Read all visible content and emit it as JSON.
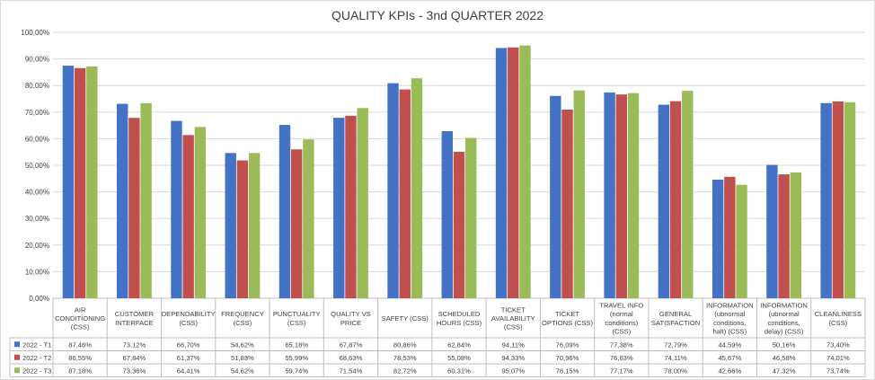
{
  "chart_data": {
    "type": "bar",
    "title": "QUALITY KPIs - 3nd QUARTER 2022",
    "ylim": [
      0,
      100
    ],
    "y_ticks": [
      "0,00%",
      "10,00%",
      "20,00%",
      "30,00%",
      "40,00%",
      "50,00%",
      "60,00%",
      "70,00%",
      "80,00%",
      "90,00%",
      "100,00%"
    ],
    "grid": true,
    "legend_placement": "data-table-left",
    "categories": [
      [
        "AIR",
        "CONDITIONING",
        "(CSS)"
      ],
      [
        "CUSTOMER",
        "INTERFACE"
      ],
      [
        "DEPENDABILITY",
        "(CSS)"
      ],
      [
        "FREQUENCY",
        "(CSS)"
      ],
      [
        "PUNCTUALITY",
        "(CSS)"
      ],
      [
        "QUALITY VS",
        "PRICE"
      ],
      [
        "SAFETY (CSS)"
      ],
      [
        "SCHEDULED",
        "HOURS (CSS)"
      ],
      [
        "TICKET",
        "AVAILABILITY",
        "(CSS)"
      ],
      [
        "TICKET",
        "OPTIONS (CSS)"
      ],
      [
        "TRAVEL INFO",
        "(normal",
        "conditions)",
        "(CSS)"
      ],
      [
        "GENERAL",
        "SATISFACTION"
      ],
      [
        "INFORMATION",
        "(ubnormal",
        "conditions,",
        "halt) (CSS)"
      ],
      [
        "INFORMATION",
        "(ubnormal",
        "conditions,",
        "delay) (CSS)"
      ],
      [
        "CLEANLINESS",
        "(CSS)"
      ]
    ],
    "series": [
      {
        "name": "2022 - T1",
        "color": "#4472c4",
        "values": [
          87.46,
          73.12,
          66.7,
          54.62,
          65.18,
          67.87,
          80.86,
          62.84,
          94.11,
          76.09,
          77.38,
          72.79,
          44.59,
          50.16,
          73.4
        ],
        "labels": [
          "87,46%",
          "73,12%",
          "66,70%",
          "54,62%",
          "65,18%",
          "67,87%",
          "80,86%",
          "62,84%",
          "94,11%",
          "76,09%",
          "77,38%",
          "72,79%",
          "44,59%",
          "50,16%",
          "73,40%"
        ]
      },
      {
        "name": "2022 - T2",
        "color": "#c0504d",
        "values": [
          86.55,
          67.84,
          61.37,
          51.83,
          55.99,
          68.63,
          78.53,
          55.08,
          94.33,
          70.96,
          76.63,
          74.11,
          45.67,
          46.58,
          74.01
        ],
        "labels": [
          "86,55%",
          "67,84%",
          "61,37%",
          "51,83%",
          "55,99%",
          "68,63%",
          "78,53%",
          "55,08%",
          "94,33%",
          "70,96%",
          "76,63%",
          "74,11%",
          "45,67%",
          "46,58%",
          "74,01%"
        ]
      },
      {
        "name": "2022 - T3",
        "color": "#9bbb59",
        "values": [
          87.18,
          73.36,
          64.41,
          54.62,
          59.74,
          71.54,
          82.72,
          60.31,
          95.07,
          78.15,
          77.17,
          78.0,
          42.66,
          47.32,
          73.74
        ],
        "labels": [
          "87,18%",
          "73,36%",
          "64,41%",
          "54,62%",
          "59,74%",
          "71,54%",
          "82,72%",
          "60,31%",
          "95,07%",
          "78,15%",
          "77,17%",
          "78,00%",
          "42,66%",
          "47,32%",
          "73,74%"
        ]
      }
    ]
  }
}
